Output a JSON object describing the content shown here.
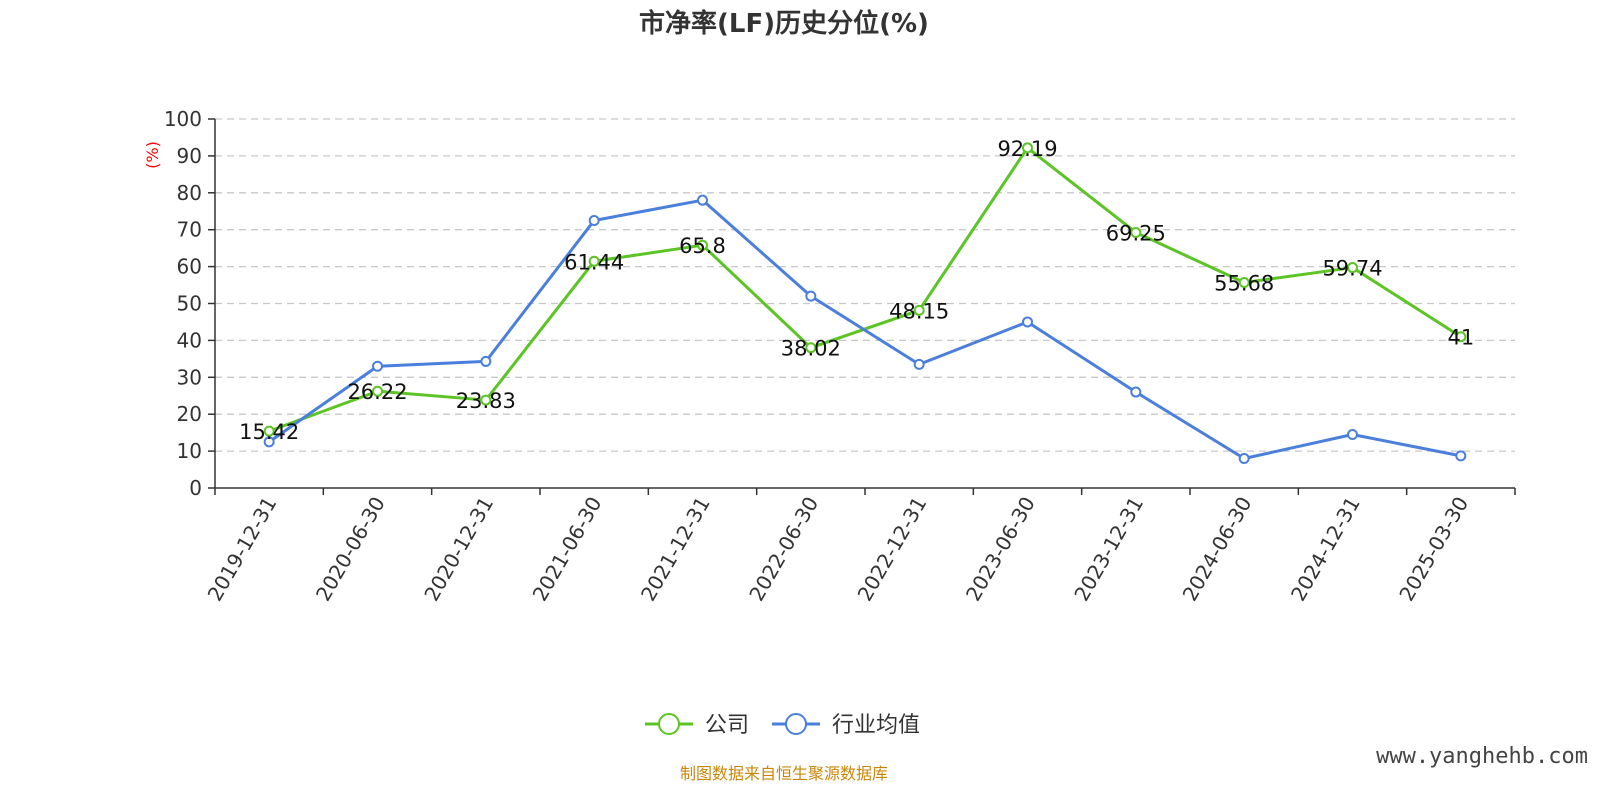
{
  "chart_data": {
    "type": "line",
    "title": "市净率(LF)历史分位(%)",
    "ylabel": "(%)",
    "ylim": [
      0,
      100
    ],
    "y_ticks": [
      "0",
      "10",
      "20",
      "30",
      "40",
      "50",
      "60",
      "70",
      "80",
      "90",
      "100"
    ],
    "grid": true,
    "categories": [
      "2019-12-31",
      "2020-06-30",
      "2020-12-31",
      "2021-06-30",
      "2021-12-31",
      "2022-06-30",
      "2022-12-31",
      "2023-06-30",
      "2023-12-31",
      "2024-06-30",
      "2024-12-31",
      "2025-03-30"
    ],
    "series": [
      {
        "name": "公司",
        "color": "#5cc424",
        "values": [
          15.42,
          26.22,
          23.83,
          61.44,
          65.8,
          38.02,
          48.15,
          92.19,
          69.25,
          55.68,
          59.74,
          41
        ],
        "labels": [
          "15.42",
          "26.22",
          "23.83",
          "61.44",
          "65.8",
          "38.02",
          "48.15",
          "92.19",
          "69.25",
          "55.68",
          "59.74",
          "41"
        ]
      },
      {
        "name": "行业均值",
        "color": "#4a7fdc",
        "values": [
          12.5,
          33,
          34.3,
          72.5,
          78,
          52,
          33.5,
          45,
          26,
          8,
          14.5,
          8.7
        ]
      }
    ],
    "legend_position": "bottom-center"
  },
  "footer": {
    "source": "制图数据来自恒生聚源数据库",
    "watermark": "www.yanghehb.com"
  }
}
